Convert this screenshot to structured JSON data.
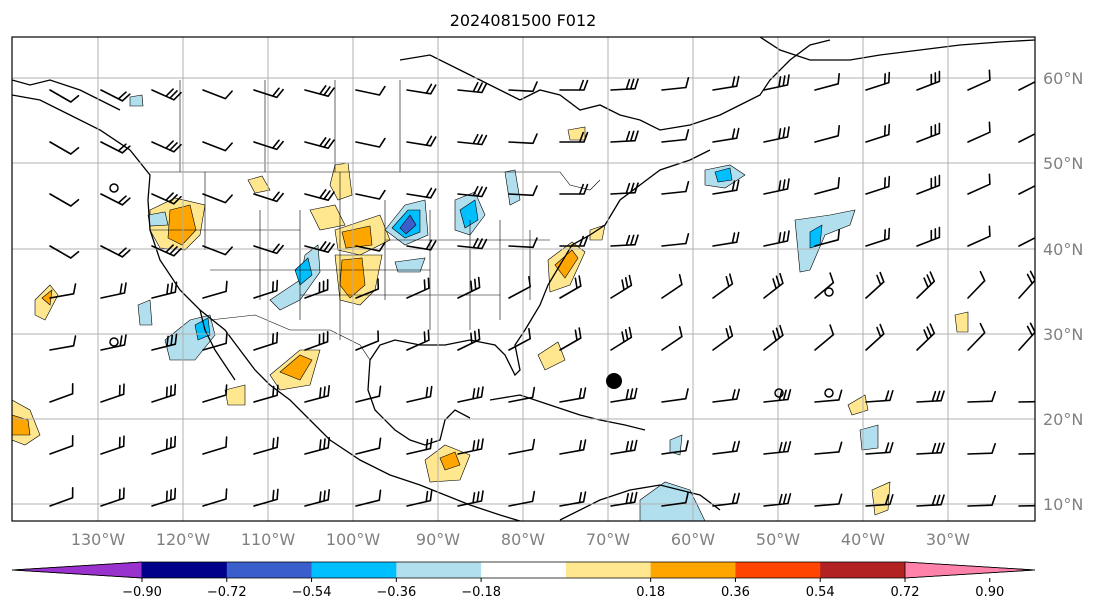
{
  "title": "2024081500 F012",
  "lon_labels": [
    "130°W",
    "120°W",
    "110°W",
    "100°W",
    "90°W",
    "80°W",
    "70°W",
    "60°W",
    "50°W",
    "40°W",
    "30°W"
  ],
  "lat_labels": [
    "60°N",
    "50°N",
    "40°N",
    "30°N",
    "20°N",
    "10°N"
  ],
  "colorbar": {
    "ticks": [
      "−0.90",
      "−0.72",
      "−0.54",
      "−0.36",
      "−0.18",
      "0.18",
      "0.36",
      "0.54",
      "0.72",
      "0.90"
    ],
    "colors": [
      "#9a32cd",
      "#00008b",
      "#3a5fcd",
      "#00bfff",
      "#b2dfee",
      "#ffffff",
      "#ffe78f",
      "#ffa500",
      "#ff4500",
      "#b22222",
      "#ff82ab"
    ]
  },
  "fill_colors": {
    "light_blue": "#b2dfee",
    "blue": "#00bfff",
    "mid_blue": "#3a5fcd",
    "yellow": "#ffe78f",
    "orange": "#ffa500"
  },
  "markers": [
    {
      "type": "tropical-cyclone-dot",
      "lon": -68.5,
      "lat": 24.5
    }
  ]
}
